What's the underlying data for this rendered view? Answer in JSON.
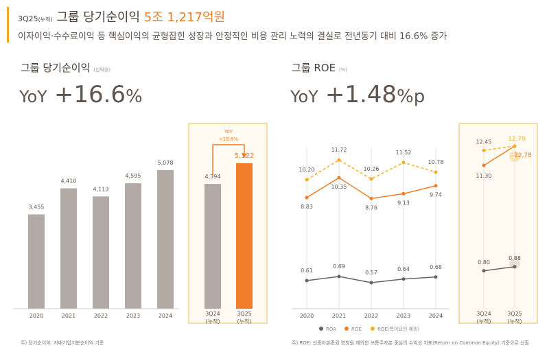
{
  "header": {
    "period": "3Q25",
    "period_note": "(누적)",
    "title": "그룹 당기순이익",
    "headline_value": "5조 1,217억원",
    "subtitle": "이자이익·수수료이익 등 핵심이익의 균형잡힌 성장과  안정적인 비용 관리 노력의 결실로 전년동기 대비 16.6% 증가"
  },
  "left": {
    "title": "그룹 당기순이익",
    "unit": "(십억원)",
    "yoy_label": "YoY",
    "yoy_value": "+16.6",
    "yoy_unit": "%",
    "footnote": "주) 당기순이익: 지배기업지분순이익 기준"
  },
  "right": {
    "title": "그룹 ROE",
    "unit": "(%)",
    "yoy_label": "YoY",
    "yoy_value": "+1.48",
    "yoy_unit": "%p",
    "footnote": "주) ROE: 신종자본증권 영향을 제외한 보통주자본 중심의 수익성 지표(Return on Common Equity) 기준으로 산출"
  },
  "colors": {
    "bar": "#b3aaa5",
    "highlight": "#ef7d2a",
    "roa": "#6b625c",
    "roe": "#ef7d2a",
    "roe_ex": "#f6b026",
    "accent": "#f6a623"
  },
  "chart_data": [
    {
      "type": "bar",
      "categories": [
        "2020",
        "2021",
        "2022",
        "2023",
        "2024"
      ],
      "values": [
        3455,
        4410,
        4113,
        4595,
        5078
      ],
      "ylabel": "",
      "unit": "십억원"
    },
    {
      "type": "bar",
      "categories": [
        "3Q24\n(누적)",
        "3Q25\n(누적)"
      ],
      "values": [
        4394,
        5122
      ],
      "annotation": "YoY\n+16.6%",
      "highlight": "3Q25"
    },
    {
      "type": "line",
      "categories": [
        "2020",
        "2021",
        "2022",
        "2023",
        "2024"
      ],
      "series": [
        {
          "name": "ROA",
          "values": [
            0.61,
            0.69,
            0.57,
            0.64,
            0.68
          ]
        },
        {
          "name": "ROE",
          "values": [
            8.83,
            10.35,
            8.76,
            9.13,
            9.74
          ]
        },
        {
          "name": "ROE(특이요인 제외)",
          "values": [
            10.2,
            11.72,
            10.26,
            11.52,
            10.78
          ],
          "dashed": true
        }
      ],
      "legend": "bottom"
    },
    {
      "type": "line",
      "categories": [
        "3Q24\n(누적)",
        "3Q25\n(누적)"
      ],
      "series": [
        {
          "name": "ROA",
          "values": [
            0.8,
            0.88
          ]
        },
        {
          "name": "ROE",
          "values": [
            11.3,
            12.78
          ]
        },
        {
          "name": "ROE(특이요인 제외)",
          "values": [
            12.45,
            12.79
          ],
          "dashed": true
        }
      ]
    }
  ]
}
